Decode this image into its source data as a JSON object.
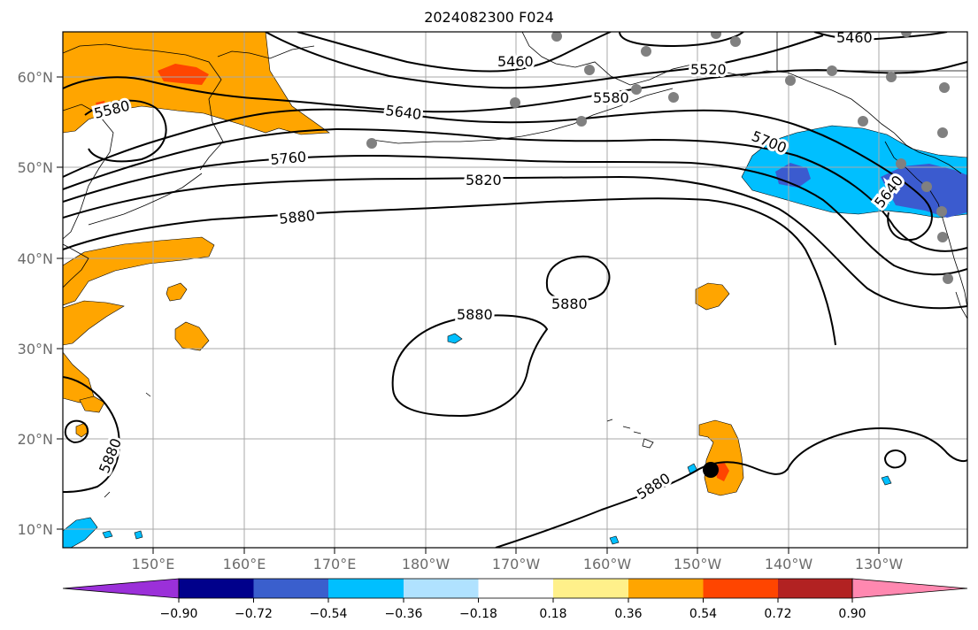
{
  "title": "2024082300 F024",
  "map": {
    "lat_labels": [
      "60°N",
      "50°N",
      "40°N",
      "30°N",
      "20°N",
      "10°N"
    ],
    "lon_labels": [
      "150°E",
      "160°E",
      "170°E",
      "180°W",
      "170°W",
      "160°W",
      "150°W",
      "140°W",
      "130°W"
    ],
    "contour_labels": [
      "5460",
      "5460",
      "5520",
      "5580",
      "5580",
      "5640",
      "5640",
      "5700",
      "5760",
      "5820",
      "5880",
      "5880",
      "5880",
      "5880",
      "5880"
    ],
    "fill_colors": {
      "orange": "#ffa500",
      "red_orange": "#ff4500",
      "deep_sky": "#00bfff",
      "royal_blue": "#3b5bcf"
    }
  },
  "colorbar": {
    "ticks": [
      "−0.90",
      "−0.72",
      "−0.54",
      "−0.36",
      "−0.18",
      "0.18",
      "0.36",
      "0.54",
      "0.72",
      "0.90"
    ],
    "colors": [
      "#9b30d9",
      "#00008b",
      "#3a5fcd",
      "#00bfff",
      "#b0e2ff",
      "#ffffff",
      "#fff08a",
      "#ffa500",
      "#ff4500",
      "#b22222",
      "#ff88b0"
    ]
  }
}
